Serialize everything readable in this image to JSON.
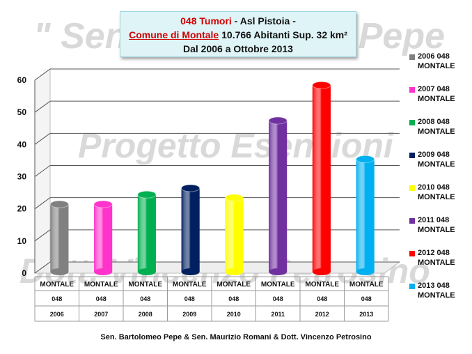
{
  "watermarks": {
    "top": "\" Sen. Bartolomeo Pepe",
    "middle": "Progetto Esenzioni",
    "bottom": "Dott. Vincenzo Petrosino"
  },
  "title": {
    "line1_red": "048 Tumori",
    "line1_rest": " - Asl Pistoia -",
    "line2_red": "Comune di Montale",
    "line2_rest": " 10.766 Abitanti Sup. 32 km²",
    "line3": "Dal 2006 a Ottobre 2013"
  },
  "footer": "Sen. Bartolomeo Pepe & Sen. Maurizio Romani  & Dott.  Vincenzo Petrosino",
  "chart_data": {
    "type": "bar",
    "ylim": [
      0,
      60
    ],
    "yticks": [
      0,
      10,
      20,
      30,
      40,
      50,
      60
    ],
    "grid": true,
    "legend_position": "right",
    "categories": [
      {
        "l1": "MONTALE",
        "l2": "048",
        "l3": "2006"
      },
      {
        "l1": "MONTALE",
        "l2": "048",
        "l3": "2007"
      },
      {
        "l1": "MONTALE",
        "l2": "048",
        "l3": "2008"
      },
      {
        "l1": "MONTALE",
        "l2": "048",
        "l3": "2009"
      },
      {
        "l1": "MONTALE",
        "l2": "048",
        "l3": "2010"
      },
      {
        "l1": "MONTALE",
        "l2": "048",
        "l3": "2011"
      },
      {
        "l1": "MONTALE",
        "l2": "048",
        "l3": "2012"
      },
      {
        "l1": "MONTALE",
        "l2": "048",
        "l3": "2013"
      }
    ],
    "series": [
      {
        "name": "2006 048 MONTALE",
        "value": 21,
        "color": "#808080"
      },
      {
        "name": "2007 048 MONTALE",
        "value": 21,
        "color": "#ff33cc"
      },
      {
        "name": "2008 048 MONTALE",
        "value": 24,
        "color": "#00b050"
      },
      {
        "name": "2009 048 MONTALE",
        "value": 26,
        "color": "#002060"
      },
      {
        "name": "2010 048 MONTALE",
        "value": 23,
        "color": "#ffff00"
      },
      {
        "name": "2011 048 MONTALE",
        "value": 47,
        "color": "#7030a0"
      },
      {
        "name": "2012 048 MONTALE",
        "value": 58,
        "color": "#ff0000"
      },
      {
        "name": "2013 048 MONTALE",
        "value": 35,
        "color": "#00b0f0"
      }
    ]
  }
}
